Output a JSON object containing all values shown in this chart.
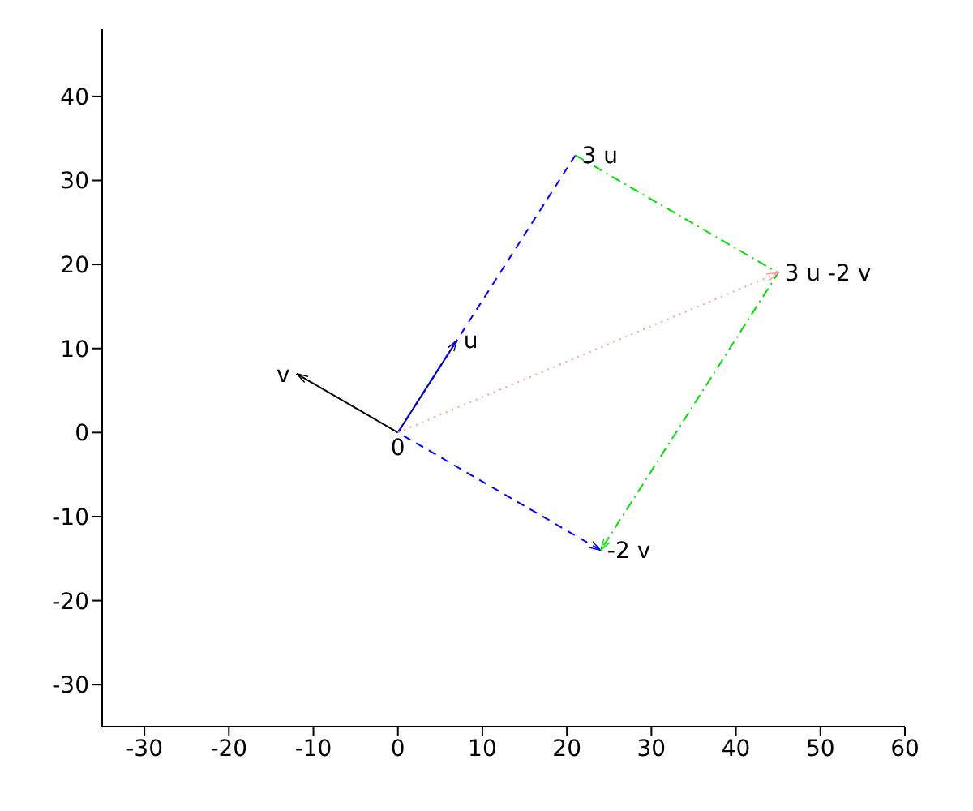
{
  "chart_data": {
    "type": "line",
    "xlim": [
      -35,
      60
    ],
    "ylim": [
      -35,
      48
    ],
    "xticks": [
      -30,
      -20,
      -10,
      0,
      10,
      20,
      30,
      40,
      50,
      60
    ],
    "yticks": [
      -30,
      -20,
      -10,
      0,
      10,
      20,
      30,
      40
    ],
    "grid": false,
    "legend": false,
    "marker": "none",
    "series": [
      {
        "color": "#000080",
        "x": [
          0,
          7
        ],
        "values": [
          0,
          11
        ],
        "line_style": "solid"
      },
      {
        "color": "#000000",
        "x": [
          0,
          -12
        ],
        "values": [
          0,
          7
        ],
        "line_style": "solid"
      },
      {
        "color": "#0000ff",
        "x": [
          21,
          0,
          24
        ],
        "values": [
          33,
          0,
          -14
        ],
        "line_style": "dashed"
      },
      {
        "color": "#00e000",
        "x": [
          21,
          45,
          24
        ],
        "values": [
          33,
          19,
          -14
        ],
        "line_style": "dashdot"
      },
      {
        "color": "#ff9999",
        "x": [
          0,
          45
        ],
        "values": [
          0,
          19
        ],
        "line_style": "dotted"
      }
    ],
    "annotations": [
      {
        "text": "u",
        "x": 7,
        "y": 11
      },
      {
        "text": "v",
        "x": -12,
        "y": 7
      },
      {
        "text": "0",
        "x": 0,
        "y": 0
      },
      {
        "text": "3 u",
        "x": 21,
        "y": 33
      },
      {
        "text": "-2 v",
        "x": 24,
        "y": -14
      },
      {
        "text": "3 u -2 v",
        "x": 45,
        "y": 19
      }
    ]
  }
}
